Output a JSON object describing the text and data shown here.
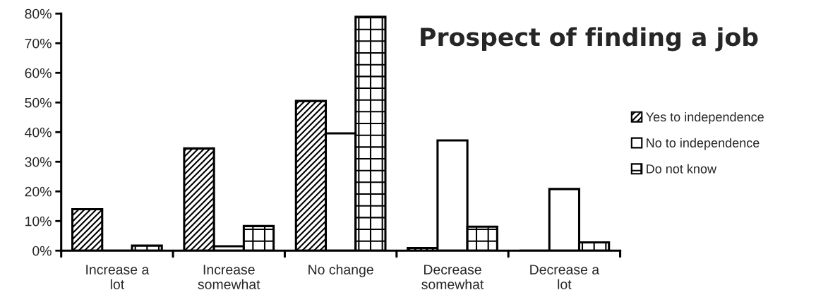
{
  "chart_data": {
    "type": "bar",
    "title": "Prospect of finding a job",
    "categories": [
      "Increase a lot",
      "Increase somewhat",
      "No change",
      "Decrease somewhat",
      "Decrease a lot"
    ],
    "series": [
      {
        "name": "Yes to independence",
        "color": "#000000",
        "values": [
          14.0,
          34.5,
          50.5,
          0.9,
          0
        ]
      },
      {
        "name": "No to independence",
        "color": "#ffffff",
        "values": [
          0,
          1.5,
          39.6,
          37.2,
          20.8
        ]
      },
      {
        "name": "Do not know",
        "color": "#000000",
        "values": [
          1.7,
          8.3,
          78.9,
          8.1,
          2.8
        ]
      }
    ],
    "ylim": [
      0,
      80
    ],
    "yticks": [
      {
        "value": 0,
        "label": "0%"
      },
      {
        "value": 10,
        "label": "10%"
      },
      {
        "value": 20,
        "label": "20%"
      },
      {
        "value": 30,
        "label": "30%"
      },
      {
        "value": 40,
        "label": "40%"
      },
      {
        "value": 50,
        "label": "50%"
      },
      {
        "value": 60,
        "label": "60%"
      },
      {
        "value": 70,
        "label": "70%"
      },
      {
        "value": 80,
        "label": "80%"
      }
    ],
    "grid": false,
    "legend": "right"
  }
}
